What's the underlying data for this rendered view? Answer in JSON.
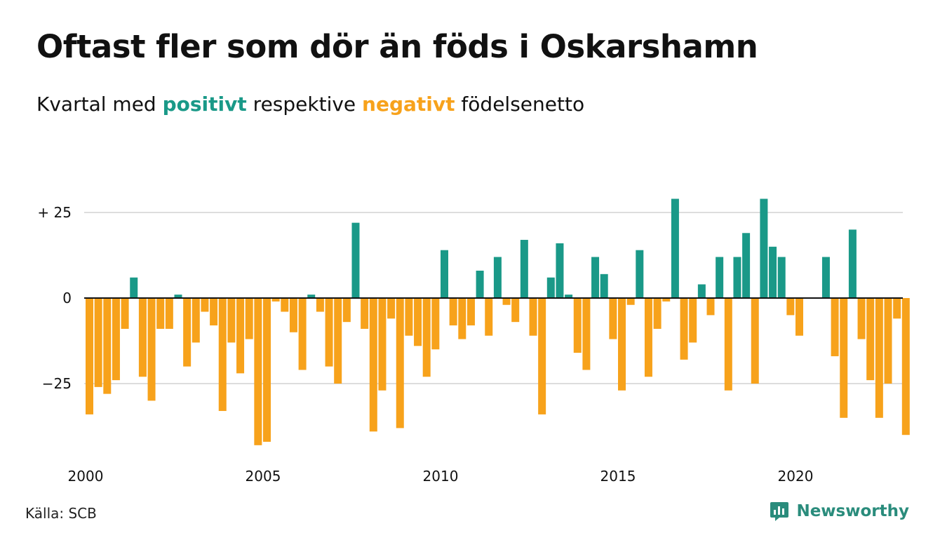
{
  "title": "Oftast fler som dör än föds i Oskarshamn",
  "subtitle": {
    "prefix": "Kvartal med ",
    "positive_word": "positivt",
    "middle": " respektive ",
    "negative_word": "negativt",
    "suffix": " födelsenetto"
  },
  "source": "Källa: SCB",
  "brand": {
    "name": "Newsworthy",
    "logo_icon": "bar-chart-logo-icon"
  },
  "colors": {
    "positive": "#1a9988",
    "negative": "#f7a21b",
    "grid": "#dddddd",
    "zero_line": "#111111"
  },
  "chart_data": {
    "type": "bar",
    "x_start": 2000,
    "x_step": 0.25,
    "xticks": [
      2000,
      2005,
      2010,
      2015,
      2020
    ],
    "yticks": [
      25,
      0,
      -25
    ],
    "ytick_labels": [
      "+ 25",
      "0",
      "−25"
    ],
    "ylim": [
      -45,
      33
    ],
    "grid": true,
    "values": [
      -34,
      -26,
      -28,
      -24,
      -9,
      6,
      -23,
      -30,
      -9,
      -9,
      1,
      -20,
      -13,
      -4,
      -8,
      -33,
      -13,
      -22,
      -12,
      -43,
      -42,
      -1,
      -4,
      -10,
      -21,
      1,
      -4,
      -20,
      -25,
      -7,
      22,
      -9,
      -39,
      -27,
      -6,
      -38,
      -11,
      -14,
      -23,
      -15,
      14,
      -8,
      -12,
      -8,
      8,
      -11,
      12,
      -2,
      -7,
      17,
      -11,
      -34,
      6,
      16,
      1,
      -16,
      -21,
      12,
      7,
      -12,
      -27,
      -2,
      14,
      -23,
      -9,
      -1,
      29,
      -18,
      -13,
      4,
      -5,
      12,
      -27,
      12,
      19,
      -25,
      29,
      15,
      12,
      -5,
      -11,
      0,
      0,
      12,
      -17,
      -35,
      20,
      -12,
      -24,
      -35,
      -25,
      -6,
      -40
    ]
  }
}
